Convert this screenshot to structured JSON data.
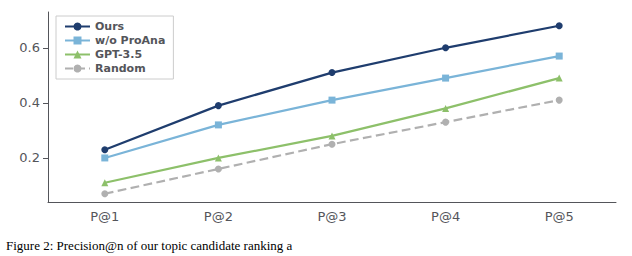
{
  "chart_data": {
    "type": "line",
    "caption": "Figure 2: Precision@n of our topic candidate ranking a",
    "categories": [
      "P@1",
      "P@2",
      "P@3",
      "P@4",
      "P@5"
    ],
    "series": [
      {
        "name": "Ours",
        "color": "#1f3d6e",
        "values": [
          0.23,
          0.39,
          0.51,
          0.6,
          0.68
        ],
        "marker": "circle",
        "line_style": "solid"
      },
      {
        "name": "w/o ProAna",
        "color": "#7ab4d8",
        "values": [
          0.2,
          0.32,
          0.41,
          0.49,
          0.57
        ],
        "marker": "square",
        "line_style": "solid"
      },
      {
        "name": "GPT-3.5",
        "color": "#8dc06a",
        "values": [
          0.11,
          0.2,
          0.28,
          0.38,
          0.49
        ],
        "marker": "triangle",
        "line_style": "solid"
      },
      {
        "name": "Random",
        "color": "#b0b0b0",
        "values": [
          0.07,
          0.16,
          0.25,
          0.33,
          0.41
        ],
        "marker": "circle",
        "line_style": "dashed"
      }
    ],
    "ylim": [
      0.04,
      0.73
    ],
    "yticks": [
      0.2,
      0.4,
      0.6
    ],
    "grid": false,
    "legend": "upper left"
  }
}
